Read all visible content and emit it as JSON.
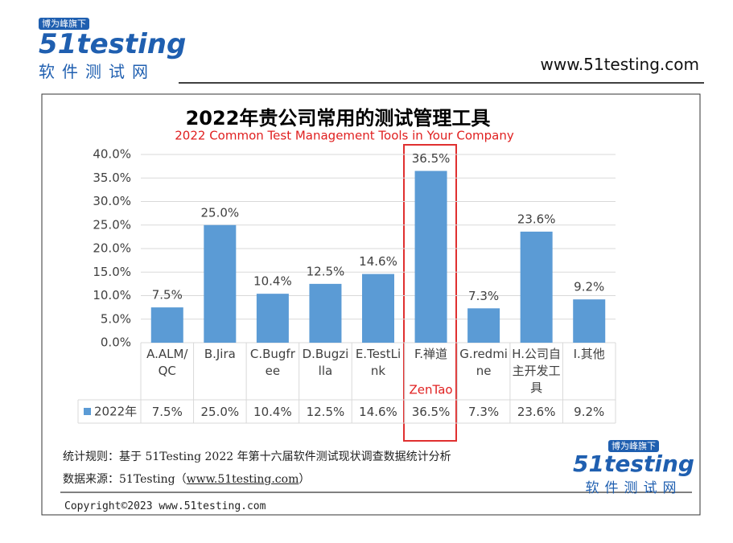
{
  "header": {
    "badge": "博为峰旗下",
    "logo": "51testing",
    "logo_sub": "软件测试网",
    "url": "www.51testing.com"
  },
  "chart_data": {
    "type": "bar",
    "title": "2022年贵公司常用的测试管理工具",
    "subtitle": "2022 Common Test Management Tools in Your Company",
    "categories": [
      "A.ALM/QC",
      "B.Jira",
      "C.Bugfree",
      "D.Bugzilla",
      "E.TestLink",
      "F.禅道",
      "G.redmine",
      "H.公司自主开发工具",
      "I.其他"
    ],
    "series": [
      {
        "name": "2022年",
        "color": "#5b9bd5",
        "values": [
          7.5,
          25.0,
          10.4,
          12.5,
          14.6,
          36.5,
          7.3,
          23.6,
          9.2
        ],
        "value_labels": [
          "7.5%",
          "25.0%",
          "10.4%",
          "12.5%",
          "14.6%",
          "36.5%",
          "7.3%",
          "23.6%",
          "9.2%"
        ]
      }
    ],
    "annotation": "ZenTao",
    "ylim": [
      0,
      40
    ],
    "yticks": [
      {
        "value": 0,
        "label": "0.0%"
      },
      {
        "value": 5,
        "label": "5.0%"
      },
      {
        "value": 10,
        "label": "10.0%"
      },
      {
        "value": 15,
        "label": "15.0%"
      },
      {
        "value": 20,
        "label": "20.0%"
      },
      {
        "value": 25,
        "label": "25.0%"
      },
      {
        "value": 30,
        "label": "30.0%"
      },
      {
        "value": 35,
        "label": "35.0%"
      },
      {
        "value": 40,
        "label": "40.0%"
      }
    ],
    "grid": true
  },
  "footer": {
    "rule": "统计规则：基于 51Testing 2022 年第十六届软件测试现状调查数据统计分析",
    "source_label": "数据来源：51Testing（",
    "source_link": "www.51testing.com",
    "source_end": "）",
    "badge": "博为峰旗下",
    "logo": "51testing",
    "logo_sub": "软件测试网",
    "copyright": "Copyright©2023 www.51testing.com"
  }
}
